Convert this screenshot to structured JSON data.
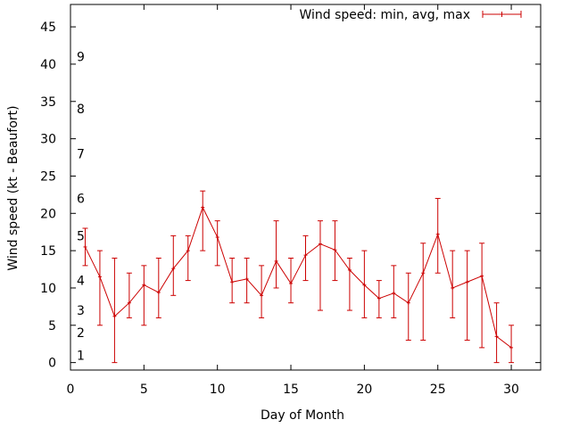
{
  "chart_data": {
    "type": "line",
    "xlabel": "Day of Month",
    "ylabel": "Wind speed (kt - Beaufort)",
    "xlim": [
      0,
      32
    ],
    "ylim": [
      -1,
      48
    ],
    "xticks": [
      0,
      5,
      10,
      15,
      20,
      25,
      30
    ],
    "yticks": [
      0,
      5,
      10,
      15,
      20,
      25,
      30,
      35,
      40,
      45
    ],
    "grid": false,
    "legend_position": "top-right",
    "series_color": "#cc0000",
    "series": [
      {
        "name": "Wind speed: min, avg, max",
        "x": [
          1,
          2,
          3,
          4,
          5,
          6,
          7,
          8,
          9,
          10,
          11,
          12,
          13,
          14,
          15,
          16,
          17,
          18,
          19,
          20,
          21,
          22,
          23,
          24,
          25,
          26,
          27,
          28,
          29,
          30
        ],
        "avg": [
          15.5,
          11.5,
          6.2,
          8,
          10.4,
          9.4,
          12.6,
          15,
          20.8,
          16.8,
          10.8,
          11.2,
          9,
          13.6,
          10.6,
          14.4,
          15.9,
          15.1,
          12.4,
          10.4,
          8.6,
          9.3,
          8,
          12,
          17.2,
          10,
          10.8,
          11.6,
          3.5,
          2
        ],
        "min": [
          13,
          5,
          0,
          6,
          5,
          6,
          9,
          11,
          15,
          13,
          8,
          8,
          6,
          10,
          8,
          11,
          7,
          11,
          7,
          6,
          6,
          6,
          3,
          3,
          12,
          6,
          3,
          2,
          0,
          0
        ],
        "max": [
          18,
          15,
          14,
          12,
          13,
          14,
          17,
          17,
          23,
          19,
          14,
          14,
          13,
          19,
          14,
          17,
          19,
          19,
          14,
          15,
          11,
          13,
          12,
          16,
          22,
          15,
          15,
          16,
          8,
          5
        ]
      }
    ],
    "annotations": [
      {
        "text": "1",
        "y": 1
      },
      {
        "text": "2",
        "y": 4
      },
      {
        "text": "3",
        "y": 7
      },
      {
        "text": "4",
        "y": 11
      },
      {
        "text": "5",
        "y": 17
      },
      {
        "text": "6",
        "y": 22
      },
      {
        "text": "7",
        "y": 28
      },
      {
        "text": "8",
        "y": 34
      },
      {
        "text": "9",
        "y": 41
      }
    ]
  }
}
